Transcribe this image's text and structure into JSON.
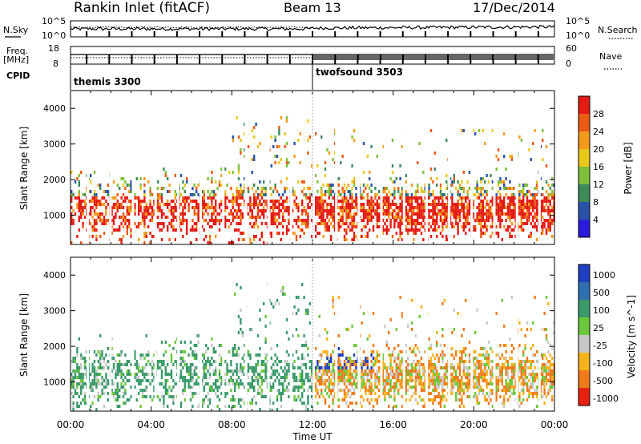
{
  "header": {
    "station": "Rankin Inlet (fitACF)",
    "beam": "Beam 13",
    "date": "17/Dec/2014"
  },
  "noise_panel": {
    "left_label": "N.Sky",
    "right_label": "N.Search",
    "left_ticks": [
      "10^5",
      "10^0"
    ],
    "right_ticks": [
      "10^5",
      "10^0"
    ]
  },
  "freq_panel": {
    "left_label_1": "Freq.",
    "left_label_2": "[MHz]",
    "left_ticks": [
      "18",
      "8"
    ],
    "right_label": "Nave",
    "right_ticks": [
      "60",
      "0"
    ]
  },
  "cpid": {
    "label": "CPID",
    "modes": [
      {
        "name": "themis 3300",
        "start": "00:00"
      },
      {
        "name": "twofsound 3503",
        "start": "12:00"
      }
    ]
  },
  "chart_data": [
    {
      "type": "heatmap",
      "parameter": "Power",
      "ylabel": "Slant Range [km]",
      "ylim": [
        180,
        4500
      ],
      "yticks": [
        "1000",
        "2000",
        "3000",
        "4000"
      ],
      "xlim": [
        "00:00",
        "24:00"
      ],
      "colorbar_label": "Power [dB]",
      "colorbar_ticks": [
        "4",
        "8",
        "12",
        "16",
        "20",
        "24",
        "28"
      ],
      "colorbar_colors": [
        "#2b1bdc",
        "#2a52a8",
        "#3e8a5a",
        "#7fbf3a",
        "#e8c81a",
        "#f39a1a",
        "#ec5a14",
        "#e41a14"
      ],
      "regions": [
        {
          "from": "00:00",
          "to": "12:00",
          "range_km": [
            300,
            2400
          ],
          "level": "high"
        },
        {
          "from": "12:00",
          "to": "24:00",
          "range_km": [
            300,
            2100
          ],
          "level": "high"
        },
        {
          "from": "08:00",
          "to": "12:00",
          "range_km": [
            2500,
            3800
          ],
          "level": "sparse"
        }
      ]
    },
    {
      "type": "heatmap",
      "parameter": "Velocity",
      "ylabel": "Slant Range [km]",
      "ylim": [
        180,
        4500
      ],
      "yticks": [
        "1000",
        "2000",
        "3000",
        "4000"
      ],
      "xlim": [
        "00:00",
        "24:00"
      ],
      "colorbar_label": "Velocity [m s^-1]",
      "colorbar_ticks": [
        "1000",
        "500",
        "100",
        "25",
        "-25",
        "-100",
        "-500",
        "-1000"
      ],
      "colorbar_colors": [
        "#1e3fbf",
        "#2e6fb0",
        "#3a9a6a",
        "#6bc83a",
        "#c8c8c8",
        "#f5b21a",
        "#f07a1a",
        "#e8200f"
      ],
      "regions": [
        {
          "from": "00:00",
          "to": "12:00",
          "range_km": [
            800,
            2400
          ],
          "velocity": "toward (green)"
        },
        {
          "from": "12:00",
          "to": "24:00",
          "range_km": [
            500,
            2000
          ],
          "velocity": "away (orange)"
        }
      ]
    }
  ],
  "time_axis": {
    "label": "Time UT",
    "ticks": [
      "00:00",
      "04:00",
      "08:00",
      "12:00",
      "16:00",
      "20:00",
      "00:00"
    ]
  }
}
